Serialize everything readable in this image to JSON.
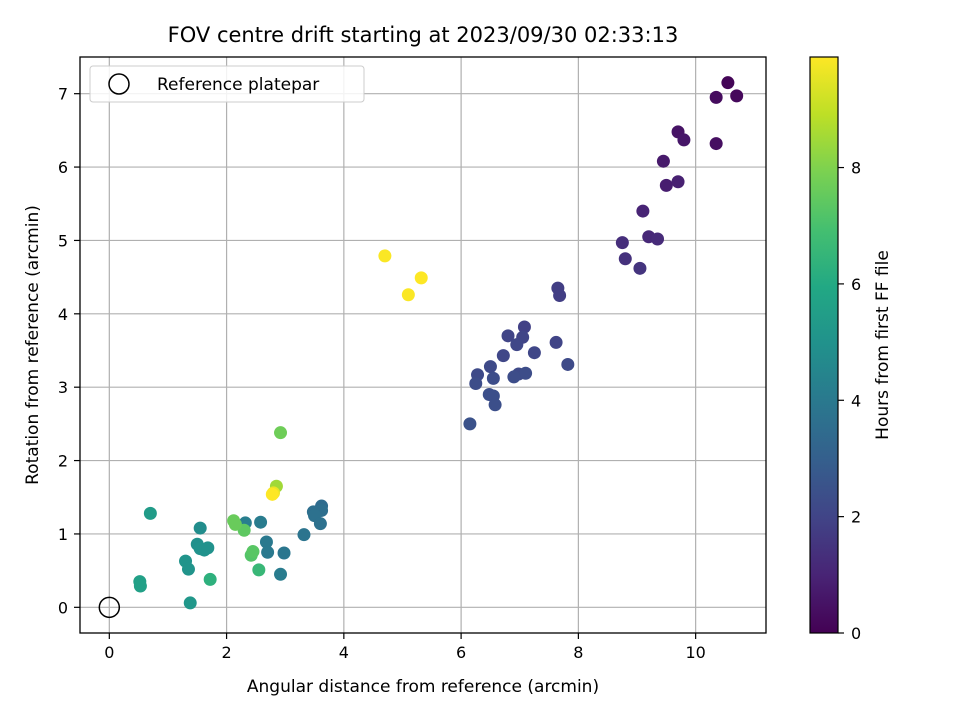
{
  "chart_data": {
    "type": "scatter",
    "title": "FOV centre drift starting at 2023/09/30 02:33:13",
    "xlabel": "Angular distance from reference (arcmin)",
    "ylabel": "Rotation from reference (arcmin)",
    "xlim": [
      -0.5,
      11.2
    ],
    "ylim": [
      -0.35,
      7.5
    ],
    "xticks": [
      0,
      2,
      4,
      6,
      8,
      10
    ],
    "yticks": [
      0,
      1,
      2,
      3,
      4,
      5,
      6,
      7
    ],
    "grid": true,
    "legend": {
      "placement": "upper-left",
      "entries": [
        "Reference platepar"
      ]
    },
    "reference_point": {
      "x": 0,
      "y": 0
    },
    "colorbar": {
      "label": "Hours from first FF file",
      "colormap": "viridis",
      "range": [
        0,
        9.9
      ],
      "ticks": [
        0,
        2,
        4,
        6,
        8
      ]
    },
    "points": [
      {
        "x": 10.55,
        "y": 7.15,
        "c": 0.1
      },
      {
        "x": 10.7,
        "y": 6.97,
        "c": 0.2
      },
      {
        "x": 10.35,
        "y": 6.95,
        "c": 0.3
      },
      {
        "x": 10.35,
        "y": 6.32,
        "c": 0.4
      },
      {
        "x": 9.7,
        "y": 6.48,
        "c": 0.5
      },
      {
        "x": 9.8,
        "y": 6.37,
        "c": 0.6
      },
      {
        "x": 9.45,
        "y": 6.08,
        "c": 0.7
      },
      {
        "x": 9.5,
        "y": 5.75,
        "c": 0.8
      },
      {
        "x": 9.7,
        "y": 5.8,
        "c": 0.9
      },
      {
        "x": 9.1,
        "y": 5.4,
        "c": 1.0
      },
      {
        "x": 9.2,
        "y": 5.05,
        "c": 1.1
      },
      {
        "x": 9.35,
        "y": 5.02,
        "c": 1.2
      },
      {
        "x": 8.75,
        "y": 4.97,
        "c": 1.3
      },
      {
        "x": 8.8,
        "y": 4.75,
        "c": 1.4
      },
      {
        "x": 9.05,
        "y": 4.62,
        "c": 1.5
      },
      {
        "x": 7.65,
        "y": 4.35,
        "c": 1.8
      },
      {
        "x": 7.68,
        "y": 4.25,
        "c": 1.8
      },
      {
        "x": 7.08,
        "y": 3.82,
        "c": 1.9
      },
      {
        "x": 6.8,
        "y": 3.7,
        "c": 2.0
      },
      {
        "x": 7.05,
        "y": 3.68,
        "c": 2.0
      },
      {
        "x": 7.62,
        "y": 3.61,
        "c": 2.0
      },
      {
        "x": 6.95,
        "y": 3.58,
        "c": 2.1
      },
      {
        "x": 7.25,
        "y": 3.47,
        "c": 2.1
      },
      {
        "x": 6.72,
        "y": 3.43,
        "c": 2.1
      },
      {
        "x": 7.82,
        "y": 3.31,
        "c": 2.2
      },
      {
        "x": 6.5,
        "y": 3.28,
        "c": 2.2
      },
      {
        "x": 6.28,
        "y": 3.17,
        "c": 2.2
      },
      {
        "x": 6.98,
        "y": 3.18,
        "c": 2.2
      },
      {
        "x": 7.1,
        "y": 3.19,
        "c": 2.3
      },
      {
        "x": 6.9,
        "y": 3.14,
        "c": 2.3
      },
      {
        "x": 6.55,
        "y": 3.12,
        "c": 2.3
      },
      {
        "x": 6.25,
        "y": 3.05,
        "c": 2.3
      },
      {
        "x": 6.48,
        "y": 2.9,
        "c": 2.4
      },
      {
        "x": 6.55,
        "y": 2.88,
        "c": 2.4
      },
      {
        "x": 6.58,
        "y": 2.76,
        "c": 2.4
      },
      {
        "x": 6.15,
        "y": 2.5,
        "c": 2.5
      },
      {
        "x": 3.62,
        "y": 1.38,
        "c": 3.5
      },
      {
        "x": 3.62,
        "y": 1.32,
        "c": 3.6
      },
      {
        "x": 3.48,
        "y": 1.3,
        "c": 3.6
      },
      {
        "x": 3.5,
        "y": 1.25,
        "c": 3.7
      },
      {
        "x": 3.6,
        "y": 1.14,
        "c": 3.7
      },
      {
        "x": 3.32,
        "y": 0.99,
        "c": 3.8
      },
      {
        "x": 2.98,
        "y": 0.74,
        "c": 3.9
      },
      {
        "x": 2.68,
        "y": 0.89,
        "c": 4.0
      },
      {
        "x": 2.7,
        "y": 0.75,
        "c": 4.0
      },
      {
        "x": 2.92,
        "y": 0.45,
        "c": 4.1
      },
      {
        "x": 2.58,
        "y": 1.16,
        "c": 4.1
      },
      {
        "x": 2.32,
        "y": 1.15,
        "c": 4.2
      },
      {
        "x": 1.55,
        "y": 1.08,
        "c": 4.8
      },
      {
        "x": 1.5,
        "y": 0.86,
        "c": 4.9
      },
      {
        "x": 1.55,
        "y": 0.8,
        "c": 5.0
      },
      {
        "x": 1.62,
        "y": 0.78,
        "c": 5.0
      },
      {
        "x": 1.68,
        "y": 0.81,
        "c": 5.0
      },
      {
        "x": 1.3,
        "y": 0.63,
        "c": 5.1
      },
      {
        "x": 1.35,
        "y": 0.52,
        "c": 5.1
      },
      {
        "x": 1.38,
        "y": 0.06,
        "c": 5.2
      },
      {
        "x": 0.7,
        "y": 1.28,
        "c": 5.4
      },
      {
        "x": 0.52,
        "y": 0.35,
        "c": 5.6
      },
      {
        "x": 0.53,
        "y": 0.29,
        "c": 5.6
      },
      {
        "x": 1.72,
        "y": 0.38,
        "c": 6.3
      },
      {
        "x": 2.55,
        "y": 0.51,
        "c": 6.6
      },
      {
        "x": 2.42,
        "y": 0.71,
        "c": 7.2
      },
      {
        "x": 2.45,
        "y": 0.76,
        "c": 7.3
      },
      {
        "x": 2.3,
        "y": 1.05,
        "c": 7.4
      },
      {
        "x": 2.12,
        "y": 1.18,
        "c": 7.6
      },
      {
        "x": 2.15,
        "y": 1.13,
        "c": 7.6
      },
      {
        "x": 2.92,
        "y": 2.38,
        "c": 7.7
      },
      {
        "x": 2.85,
        "y": 1.65,
        "c": 8.5
      },
      {
        "x": 2.8,
        "y": 1.56,
        "c": 9.6
      },
      {
        "x": 4.7,
        "y": 4.79,
        "c": 9.85
      },
      {
        "x": 5.1,
        "y": 4.26,
        "c": 9.85
      },
      {
        "x": 5.32,
        "y": 4.49,
        "c": 9.9
      },
      {
        "x": 2.78,
        "y": 1.54,
        "c": 9.9
      }
    ]
  }
}
